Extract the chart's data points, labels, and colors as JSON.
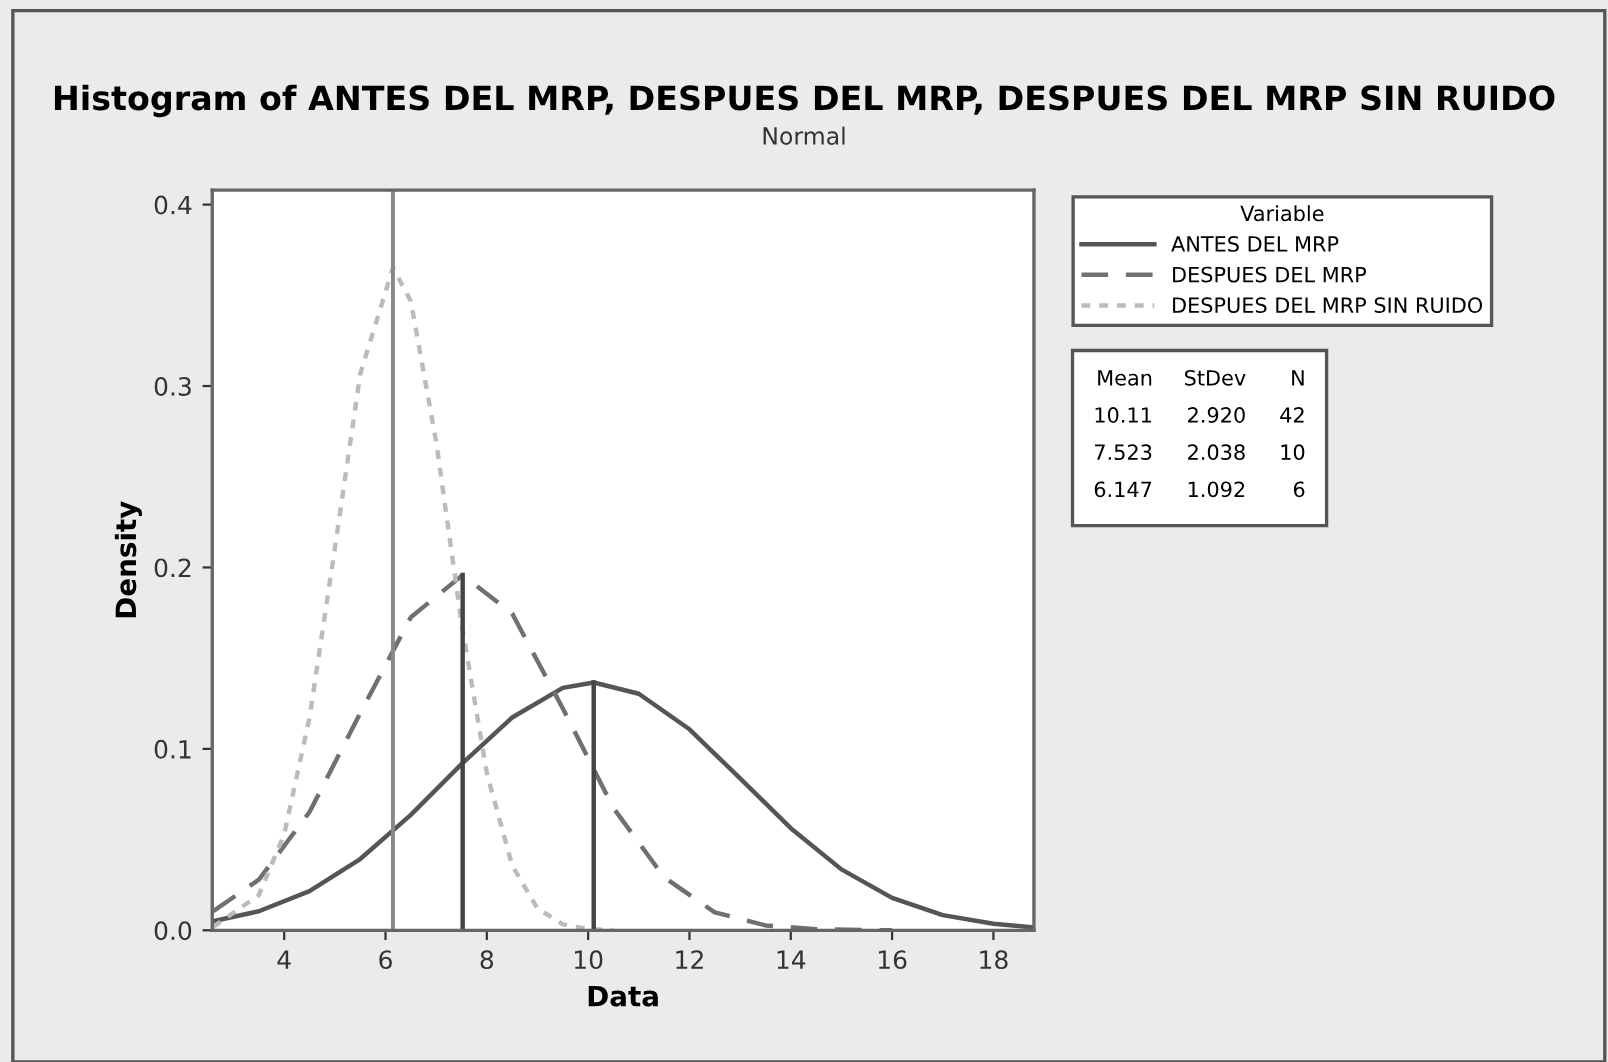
{
  "chart_data": {
    "type": "line",
    "title": "Histogram of ANTES DEL MRP, DESPUES DEL MRP, DESPUES DEL MRP SIN RUIDO",
    "subtitle": "Normal",
    "xlabel": "Data",
    "ylabel": "Density",
    "legend_title": "Variable",
    "xlim": [
      2.58,
      18.8
    ],
    "ylim": [
      0,
      0.408
    ],
    "xticks": [
      4,
      6,
      8,
      10,
      12,
      14,
      16,
      18
    ],
    "yticks": [
      {
        "value": 0,
        "label": "0.0"
      },
      {
        "value": 0.1,
        "label": "0.1"
      },
      {
        "value": 0.2,
        "label": "0.2"
      },
      {
        "value": 0.3,
        "label": "0.3"
      },
      {
        "value": 0.4,
        "label": "0.4"
      }
    ],
    "grid": false,
    "legend": "right",
    "marker": "none",
    "series": [
      {
        "name": "ANTES DEL MRP",
        "color": "#555555",
        "line_style": "solid",
        "x": [
          2.6,
          3.5,
          4.5,
          5.5,
          6.5,
          7.5,
          8.5,
          9.5,
          10.11,
          11,
          12,
          13,
          14,
          15,
          16,
          17,
          18,
          18.8
        ],
        "values": [
          0.005,
          0.0105,
          0.0216,
          0.0393,
          0.0636,
          0.0916,
          0.1173,
          0.1336,
          0.1366,
          0.1304,
          0.1108,
          0.0837,
          0.0563,
          0.0336,
          0.0179,
          0.0084,
          0.0036,
          0.0016
        ]
      },
      {
        "name": "DESPUES DEL MRP",
        "color": "#707070",
        "line_style": "dashed",
        "x": [
          2.6,
          3.5,
          4.5,
          5.5,
          6.5,
          7.523,
          8.5,
          9.5,
          10.5,
          11.5,
          12.5,
          13.5,
          14.5,
          16
        ],
        "values": [
          0.0106,
          0.0279,
          0.0652,
          0.1196,
          0.1726,
          0.1958,
          0.1746,
          0.1223,
          0.0674,
          0.0292,
          0.0099,
          0.0027,
          0.0006,
          0.0
        ]
      },
      {
        "name": "DESPUES DEL MRP SIN RUIDO",
        "color": "#bbbbbb",
        "line_style": "dotted",
        "x": [
          2.6,
          3.5,
          4,
          4.5,
          5,
          5.5,
          6.147,
          6.5,
          7,
          7.5,
          8,
          8.5,
          9,
          9.5,
          10,
          10.5
        ],
        "values": [
          0.0019,
          0.0194,
          0.0529,
          0.1172,
          0.2105,
          0.3065,
          0.3653,
          0.3467,
          0.2693,
          0.1696,
          0.0866,
          0.0358,
          0.012,
          0.0033,
          0.0007,
          0.0001
        ]
      },
      {
        "color": "#444444",
        "line_style": "solid",
        "x": [
          10.11,
          10.11
        ],
        "values": [
          0,
          0.1366
        ]
      },
      {
        "color": "#444444",
        "line_style": "solid",
        "x": [
          7.523,
          7.523
        ],
        "values": [
          0,
          0.1958
        ]
      }
    ],
    "ref_lines": [
      {
        "axis": "x",
        "value": 6.147,
        "color": "#888888",
        "line_style": "solid"
      }
    ],
    "annotations": [
      "Mean StDev N",
      "10.11 2.920 42",
      "7.523 2.038 10",
      "6.147 1.092 6"
    ]
  }
}
